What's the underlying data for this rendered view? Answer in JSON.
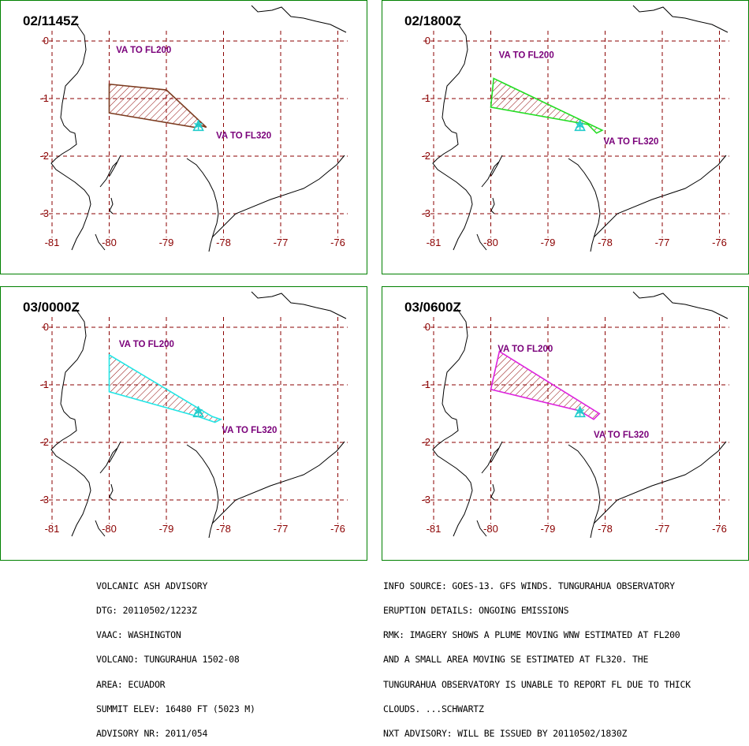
{
  "panels": [
    {
      "id": "p1",
      "title": "02/1145Z",
      "color": "#7b3a1e",
      "poly": [
        [
          -80.0,
          -0.75
        ],
        [
          -79.0,
          -0.85
        ],
        [
          -78.3,
          -1.5
        ],
        [
          -78.45,
          -1.45
        ],
        [
          -78.5,
          -1.5
        ],
        [
          -80.0,
          -1.25
        ]
      ],
      "labels": [
        {
          "text": "VA TO FL200",
          "lon": -79.88,
          "lat": -0.15
        },
        {
          "text": "VA TO FL320",
          "lon": -78.13,
          "lat": -1.64
        }
      ]
    },
    {
      "id": "p2",
      "title": "02/1800Z",
      "color": "#22dd22",
      "poly": [
        [
          -79.95,
          -0.65
        ],
        [
          -78.05,
          -1.55
        ],
        [
          -78.15,
          -1.6
        ],
        [
          -78.3,
          -1.45
        ],
        [
          -80.0,
          -1.15
        ]
      ],
      "labels": [
        {
          "text": "VA TO FL200",
          "lon": -79.86,
          "lat": -0.24
        },
        {
          "text": "VA TO FL320",
          "lon": -78.03,
          "lat": -1.74
        }
      ]
    },
    {
      "id": "p3",
      "title": "03/0000Z",
      "color": "#22e6e6",
      "poly": [
        [
          -80.0,
          -0.48
        ],
        [
          -78.2,
          -1.55
        ],
        [
          -78.05,
          -1.6
        ],
        [
          -78.15,
          -1.65
        ],
        [
          -78.45,
          -1.55
        ],
        [
          -80.0,
          -1.12
        ]
      ],
      "labels": [
        {
          "text": "VA TO FL200",
          "lon": -79.83,
          "lat": -0.29
        },
        {
          "text": "VA TO FL320",
          "lon": -78.03,
          "lat": -1.78
        }
      ]
    },
    {
      "id": "p4",
      "title": "03/0600Z",
      "color": "#dd22dd",
      "poly": [
        [
          -79.85,
          -0.42
        ],
        [
          -78.1,
          -1.5
        ],
        [
          -78.2,
          -1.6
        ],
        [
          -78.45,
          -1.45
        ],
        [
          -80.0,
          -1.08
        ]
      ],
      "labels": [
        {
          "text": "VA TO FL200",
          "lon": -79.88,
          "lat": -0.37
        },
        {
          "text": "VA TO FL320",
          "lon": -78.2,
          "lat": -1.86
        }
      ]
    }
  ],
  "map": {
    "lon_ticks": [
      "-81",
      "-80",
      "-79",
      "-78",
      "-77",
      "-76"
    ],
    "lat_ticks": [
      "0",
      "-1",
      "-2",
      "-3"
    ],
    "volcano": {
      "lon": -78.44,
      "lat": -1.47
    },
    "colors": {
      "grid": "#8b0000",
      "coast": "#000000",
      "volcano": "#22cccc",
      "frame": "#008000"
    }
  },
  "advisory_left": [
    "VOLCANIC ASH ADVISORY",
    "DTG: 20110502/1223Z",
    "VAAC: WASHINGTON",
    "VOLCANO: TUNGURAHUA 1502-08",
    "AREA: ECUADOR",
    "SUMMIT ELEV: 16480 FT (5023 M)",
    "ADVISORY NR: 2011/054"
  ],
  "advisory_right": [
    "INFO SOURCE: GOES-13. GFS WINDS. TUNGURAHUA OBSERVATORY",
    "ERUPTION DETAILS: ONGOING EMISSIONS",
    "RMK: IMAGERY SHOWS A PLUME MOVING WNW ESTIMATED AT FL200",
    "AND A SMALL AREA MOVING SE ESTIMATED AT FL320. THE",
    "TUNGURAHUA OBSERVATORY IS UNABLE TO REPORT FL DUE TO THICK",
    "CLOUDS. ...SCHWARTZ",
    "NXT ADVISORY: WILL BE ISSUED BY 20110502/1830Z"
  ]
}
